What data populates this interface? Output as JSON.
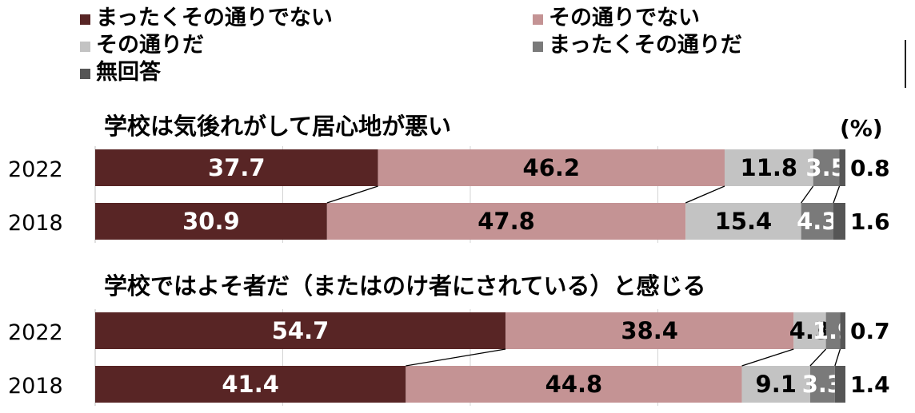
{
  "unit_label": "(%)",
  "chart_data": {
    "type": "bar",
    "orientation": "horizontal",
    "stacked": true,
    "xlim": [
      0,
      100
    ],
    "grid": true,
    "legend_position": "top",
    "series": [
      {
        "name": "まったくその通りでない",
        "color": "#582525"
      },
      {
        "name": "その通りでない",
        "color": "#c49394"
      },
      {
        "name": "その通りだ",
        "color": "#c3c3c3"
      },
      {
        "name": "まったくその通りだ",
        "color": "#7a7a7a"
      },
      {
        "name": "無回答",
        "color": "#565656"
      }
    ],
    "groups": [
      {
        "title": "学校は気後れがして居心地が悪い",
        "rows": [
          {
            "year": "2022",
            "values": [
              37.7,
              46.2,
              11.8,
              3.5,
              0.8
            ]
          },
          {
            "year": "2018",
            "values": [
              30.9,
              47.8,
              15.4,
              4.3,
              1.6
            ]
          }
        ]
      },
      {
        "title": "学校ではよそ者だ（またはのけ者にされている）と感じる",
        "rows": [
          {
            "year": "2022",
            "values": [
              54.7,
              38.4,
              4.3,
              1.9,
              0.7
            ]
          },
          {
            "year": "2018",
            "values": [
              41.4,
              44.8,
              9.1,
              3.3,
              1.4
            ]
          }
        ]
      }
    ]
  }
}
